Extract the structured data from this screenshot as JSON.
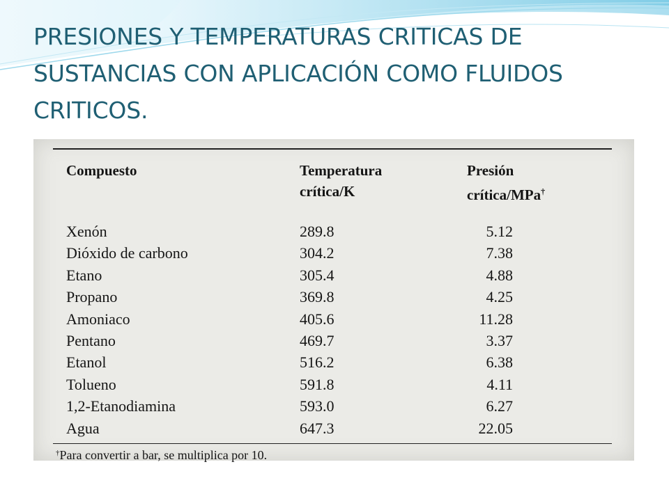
{
  "slide": {
    "title": "PRESIONES Y TEMPERATURAS CRITICAS DE SUSTANCIAS CON APLICACIÓN COMO FLUIDOS CRITICOS."
  },
  "colors": {
    "title": "#1f5f73",
    "wave": "#8fd3ea",
    "scan_background": "#ebebe7"
  },
  "table": {
    "headers": {
      "compound": "Compuesto",
      "temp_line1": "Temperatura",
      "temp_line2": "crítica/K",
      "pres_line1": "Presión",
      "pres_line2": "crítica/MPa",
      "pres_mark": "†"
    },
    "rows": [
      {
        "compound": "Xenón",
        "temperature": "289.8",
        "pressure": "5.12"
      },
      {
        "compound": "Dióxido de carbono",
        "temperature": "304.2",
        "pressure": "7.38"
      },
      {
        "compound": "Etano",
        "temperature": "305.4",
        "pressure": "4.88"
      },
      {
        "compound": "Propano",
        "temperature": "369.8",
        "pressure": "4.25"
      },
      {
        "compound": "Amoniaco",
        "temperature": "405.6",
        "pressure": "11.28"
      },
      {
        "compound": "Pentano",
        "temperature": "469.7",
        "pressure": "3.37"
      },
      {
        "compound": "Etanol",
        "temperature": "516.2",
        "pressure": "6.38"
      },
      {
        "compound": "Tolueno",
        "temperature": "591.8",
        "pressure": "4.11"
      },
      {
        "compound": "1,2-Etanodiamina",
        "temperature": "593.0",
        "pressure": "6.27"
      },
      {
        "compound": "Agua",
        "temperature": "647.3",
        "pressure": "22.05"
      }
    ],
    "footnote_mark": "†",
    "footnote": "Para convertir a bar, se multiplica por 10."
  }
}
